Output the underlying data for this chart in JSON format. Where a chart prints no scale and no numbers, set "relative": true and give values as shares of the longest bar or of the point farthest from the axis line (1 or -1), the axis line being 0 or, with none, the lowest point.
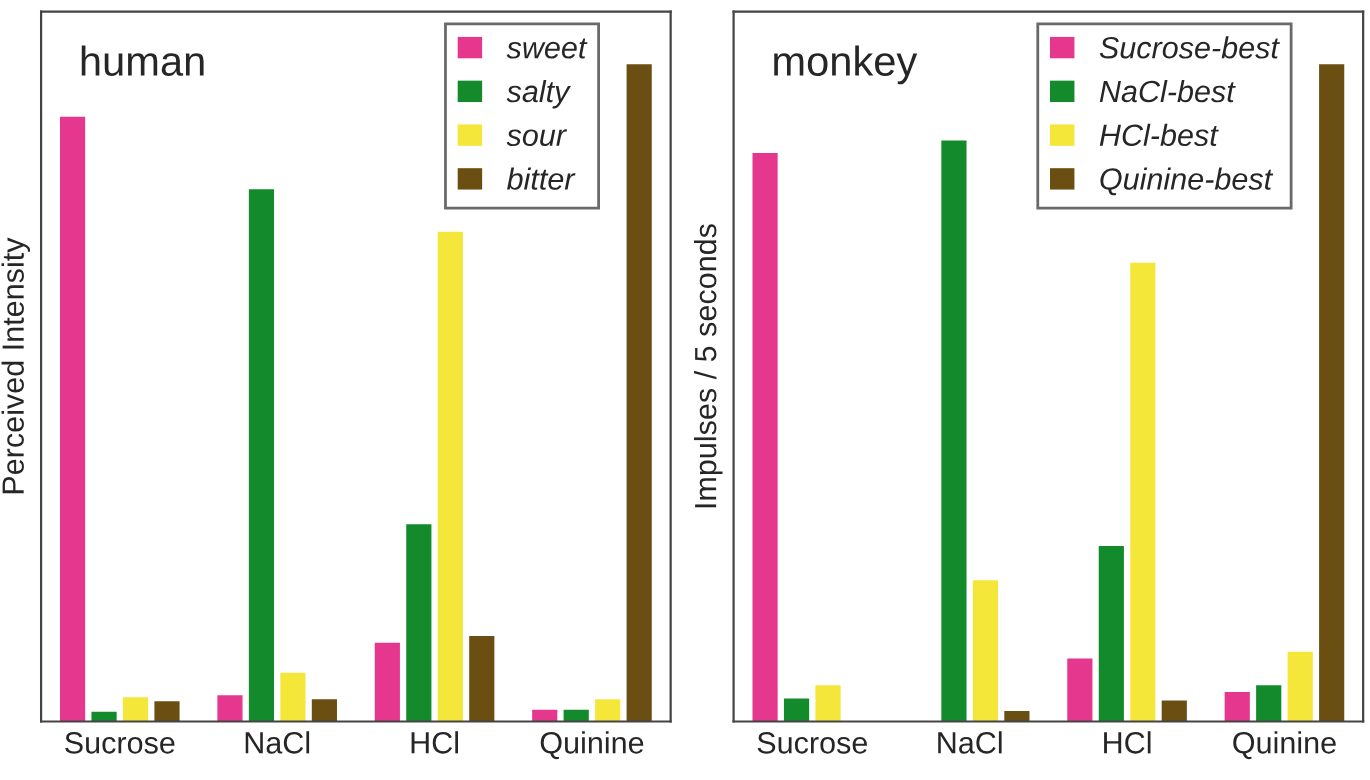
{
  "chart_data": [
    {
      "type": "bar",
      "relative": true,
      "annotations": [
        "human"
      ],
      "ylabel": "Perceived Intensity",
      "categories": [
        "Sucrose",
        "NaCl",
        "HCl",
        "Quinine"
      ],
      "legend": "top right",
      "series": [
        {
          "name": "sweet",
          "color": "#e6378f",
          "values": [
            0.92,
            0.04,
            0.12,
            0.018
          ]
        },
        {
          "name": "salty",
          "color": "#138a2b",
          "values": [
            0.015,
            0.81,
            0.3,
            0.018
          ]
        },
        {
          "name": "sour",
          "color": "#f5e63a",
          "values": [
            0.037,
            0.074,
            0.745,
            0.034
          ]
        },
        {
          "name": "bitter",
          "color": "#6b4f12",
          "values": [
            0.031,
            0.034,
            0.13,
            1
          ]
        }
      ]
    },
    {
      "type": "bar",
      "relative": true,
      "annotations": [
        "monkey"
      ],
      "ylabel": "Impulses / 5 seconds",
      "categories": [
        "Sucrose",
        "NaCl",
        "HCl",
        "Quinine"
      ],
      "legend": "top right",
      "series": [
        {
          "name": "Sucrose-best",
          "color": "#e6378f",
          "values": [
            0.865,
            0,
            0.096,
            0.045
          ]
        },
        {
          "name": "NaCl-best",
          "color": "#138a2b",
          "values": [
            0.035,
            0.884,
            0.267,
            0.055
          ]
        },
        {
          "name": "HCl-best",
          "color": "#f5e63a",
          "values": [
            0.055,
            0.215,
            0.698,
            0.106
          ]
        },
        {
          "name": "Quinine-best",
          "color": "#6b4f12",
          "values": [
            null,
            0.016,
            0.032,
            1
          ]
        }
      ]
    }
  ]
}
